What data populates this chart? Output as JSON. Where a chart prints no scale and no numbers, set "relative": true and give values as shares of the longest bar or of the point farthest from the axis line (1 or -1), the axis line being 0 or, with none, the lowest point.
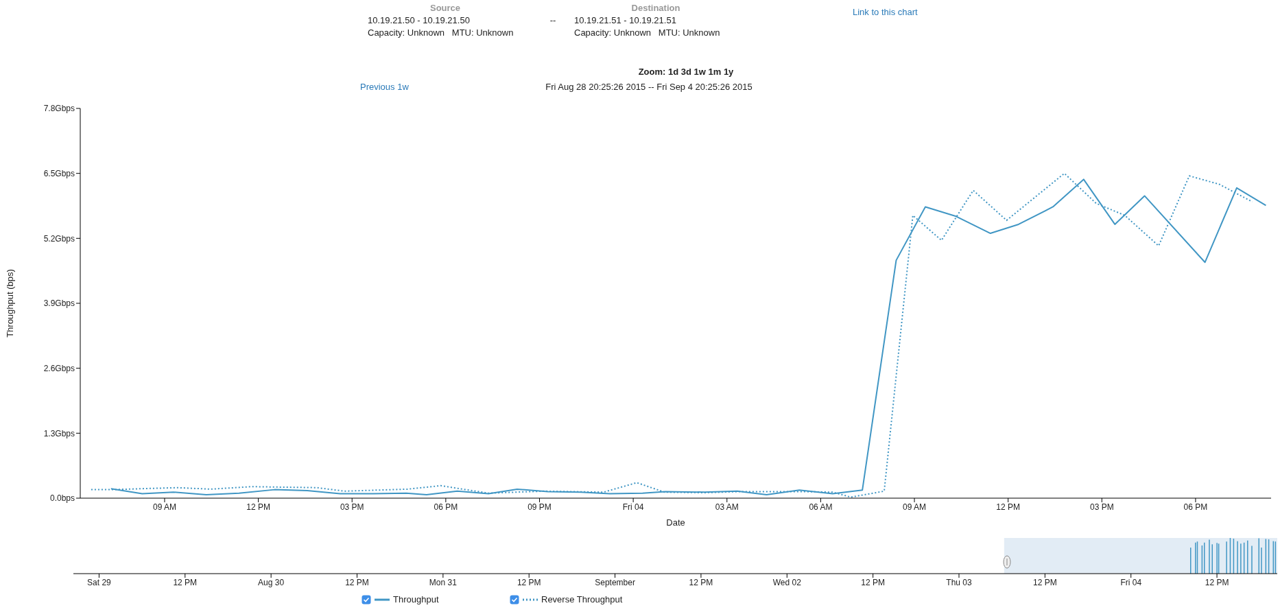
{
  "chart_data": [
    {
      "type": "line",
      "title": "Fri Aug 28 20:25:26 2015 -- Fri Sep 4 20:25:26 2015",
      "annotations": [
        "Source",
        "10.19.21.50 - 10.19.21.50",
        "Capacity: Unknown   MTU: Unknown",
        "--",
        "Destination",
        "10.19.21.51 - 10.19.21.51",
        "Capacity: Unknown   MTU: Unknown",
        "Link to this chart",
        "Zoom: 1d 3d 1w 1m 1y",
        "Previous 1w"
      ],
      "xlabel": "Date",
      "ylabel": "Throughput (bps)",
      "xlim": [
        "2015-09-03T06:18",
        "2015-09-04T20:25"
      ],
      "xticks": [
        {
          "value": "2015-09-03T09:00",
          "label": "09 AM"
        },
        {
          "value": "2015-09-03T12:00",
          "label": "12 PM"
        },
        {
          "value": "2015-09-03T15:00",
          "label": "03 PM"
        },
        {
          "value": "2015-09-03T18:00",
          "label": "06 PM"
        },
        {
          "value": "2015-09-03T21:00",
          "label": "09 PM"
        },
        {
          "value": "2015-09-04T00:00",
          "label": "Fri 04"
        },
        {
          "value": "2015-09-04T03:00",
          "label": "03 AM"
        },
        {
          "value": "2015-09-04T06:00",
          "label": "06 AM"
        },
        {
          "value": "2015-09-04T09:00",
          "label": "09 AM"
        },
        {
          "value": "2015-09-04T12:00",
          "label": "12 PM"
        },
        {
          "value": "2015-09-04T15:00",
          "label": "03 PM"
        },
        {
          "value": "2015-09-04T18:00",
          "label": "06 PM"
        }
      ],
      "ylim": [
        0,
        7.8
      ],
      "yticks": [
        {
          "value": 0,
          "label": "0.0bps"
        },
        {
          "value": 1.3,
          "label": "1.3Gbps"
        },
        {
          "value": 2.6,
          "label": "2.6Gbps"
        },
        {
          "value": 3.9,
          "label": "3.9Gbps"
        },
        {
          "value": 5.2,
          "label": "5.2Gbps"
        },
        {
          "value": 6.5,
          "label": "6.5Gbps"
        },
        {
          "value": 7.8,
          "label": "7.8Gbps"
        }
      ],
      "grid": false,
      "legend": "bottom",
      "series": [
        {
          "name": "Throughput",
          "color": "#4096c4",
          "line_style": "solid",
          "x": [
            "2015-09-03T07:17",
            "2015-09-03T08:17",
            "2015-09-03T09:17",
            "2015-09-03T10:20",
            "2015-09-03T11:23",
            "2015-09-03T12:31",
            "2015-09-03T13:34",
            "2015-09-03T14:37",
            "2015-09-03T15:40",
            "2015-09-03T16:44",
            "2015-09-03T17:23",
            "2015-09-03T18:22",
            "2015-09-03T19:22",
            "2015-09-03T20:17",
            "2015-09-03T21:16",
            "2015-09-03T22:19",
            "2015-09-03T23:15",
            "2015-09-04T00:18",
            "2015-09-04T01:02",
            "2015-09-04T02:17",
            "2015-09-04T03:20",
            "2015-09-04T04:16",
            "2015-09-04T05:19",
            "2015-09-04T06:23",
            "2015-09-04T07:20",
            "2015-09-04T08:25",
            "2015-09-04T09:21",
            "2015-09-04T10:20",
            "2015-09-04T11:26",
            "2015-09-04T12:20",
            "2015-09-04T13:26",
            "2015-09-04T14:25",
            "2015-09-04T15:25",
            "2015-09-04T16:22",
            "2015-09-04T18:18",
            "2015-09-04T19:19",
            "2015-09-04T20:15"
          ],
          "values": [
            0.19,
            0.09,
            0.12,
            0.07,
            0.1,
            0.17,
            0.15,
            0.09,
            0.09,
            0.1,
            0.07,
            0.14,
            0.09,
            0.18,
            0.13,
            0.12,
            0.09,
            0.1,
            0.13,
            0.12,
            0.14,
            0.07,
            0.16,
            0.09,
            0.16,
            4.76,
            5.83,
            5.64,
            5.3,
            5.48,
            5.83,
            6.38,
            5.48,
            6.05,
            4.72,
            6.21,
            5.86
          ]
        },
        {
          "name": "Reverse Throughput",
          "color": "#4096c4",
          "line_style": "dotted",
          "x": [
            "2015-09-03T06:39",
            "2015-09-03T07:18",
            "2015-09-03T08:17",
            "2015-09-03T09:25",
            "2015-09-03T10:28",
            "2015-09-03T11:47",
            "2015-09-03T13:53",
            "2015-09-03T14:45",
            "2015-09-03T16:47",
            "2015-09-03T17:50",
            "2015-09-03T19:22",
            "2015-09-03T21:08",
            "2015-09-03T23:03",
            "2015-09-04T00:07",
            "2015-09-04T01:00",
            "2015-09-04T02:17",
            "2015-09-04T03:20",
            "2015-09-04T05:28",
            "2015-09-04T06:23",
            "2015-09-04T06:58",
            "2015-09-04T08:02",
            "2015-09-04T08:57",
            "2015-09-04T09:52",
            "2015-09-04T10:53",
            "2015-09-04T11:57",
            "2015-09-04T13:48",
            "2015-09-04T14:49",
            "2015-09-04T15:44",
            "2015-09-04T16:49",
            "2015-09-04T17:48",
            "2015-09-04T18:46",
            "2015-09-04T19:49"
          ],
          "values": [
            0.17,
            0.17,
            0.19,
            0.21,
            0.18,
            0.23,
            0.21,
            0.14,
            0.18,
            0.25,
            0.1,
            0.14,
            0.12,
            0.31,
            0.12,
            0.11,
            0.13,
            0.13,
            0.12,
            0.02,
            0.14,
            5.66,
            5.16,
            6.16,
            5.56,
            6.5,
            5.9,
            5.66,
            5.05,
            6.45,
            6.28,
            5.93
          ]
        }
      ]
    },
    {
      "type": "bar",
      "relative": true,
      "xlim": [
        "2015-08-28T20:25",
        "2015-09-04T20:25"
      ],
      "xticks": [
        {
          "value": "2015-08-29T00:00",
          "label": "Sat 29"
        },
        {
          "value": "2015-08-29T12:00",
          "label": "12 PM"
        },
        {
          "value": "2015-08-30T00:00",
          "label": "Aug 30"
        },
        {
          "value": "2015-08-30T12:00",
          "label": "12 PM"
        },
        {
          "value": "2015-08-31T00:00",
          "label": "Mon 31"
        },
        {
          "value": "2015-08-31T12:00",
          "label": "12 PM"
        },
        {
          "value": "2015-09-01T00:00",
          "label": "September"
        },
        {
          "value": "2015-09-01T12:00",
          "label": "12 PM"
        },
        {
          "value": "2015-09-02T00:00",
          "label": "Wed 02"
        },
        {
          "value": "2015-09-02T12:00",
          "label": "12 PM"
        },
        {
          "value": "2015-09-03T00:00",
          "label": "Thu 03"
        },
        {
          "value": "2015-09-03T12:00",
          "label": "12 PM"
        },
        {
          "value": "2015-09-04T00:00",
          "label": "Fri 04"
        },
        {
          "value": "2015-09-04T12:00",
          "label": "12 PM"
        }
      ],
      "bands": [
        {
          "axis": "x",
          "from": "2015-09-03T06:18",
          "to": "2015-09-04T20:25",
          "color": "#e2ecf5"
        }
      ],
      "series": [
        {
          "color": "#4096c4",
          "x": [
            "2015-09-04T08:25",
            "2015-09-04T09:21",
            "2015-09-04T10:20",
            "2015-09-04T11:26",
            "2015-09-04T12:20",
            "2015-09-04T13:26",
            "2015-09-04T14:25",
            "2015-09-04T15:25",
            "2015-09-04T16:22",
            "2015-09-04T18:18",
            "2015-09-04T19:19",
            "2015-09-04T20:15"
          ],
          "values": [
            0.73,
            0.9,
            0.87,
            0.82,
            0.84,
            0.9,
            0.98,
            0.84,
            0.93,
            0.73,
            0.96,
            0.9
          ]
        },
        {
          "color": "#4096c4",
          "x": [
            "2015-09-04T08:57",
            "2015-09-04T09:52",
            "2015-09-04T10:53",
            "2015-09-04T11:57",
            "2015-09-04T13:48",
            "2015-09-04T14:49",
            "2015-09-04T15:44",
            "2015-09-04T16:49",
            "2015-09-04T17:48",
            "2015-09-04T18:46",
            "2015-09-04T19:49"
          ],
          "values": [
            0.87,
            0.79,
            0.95,
            0.86,
            1.0,
            0.91,
            0.87,
            0.78,
            0.99,
            0.97,
            0.91
          ]
        }
      ]
    }
  ]
}
